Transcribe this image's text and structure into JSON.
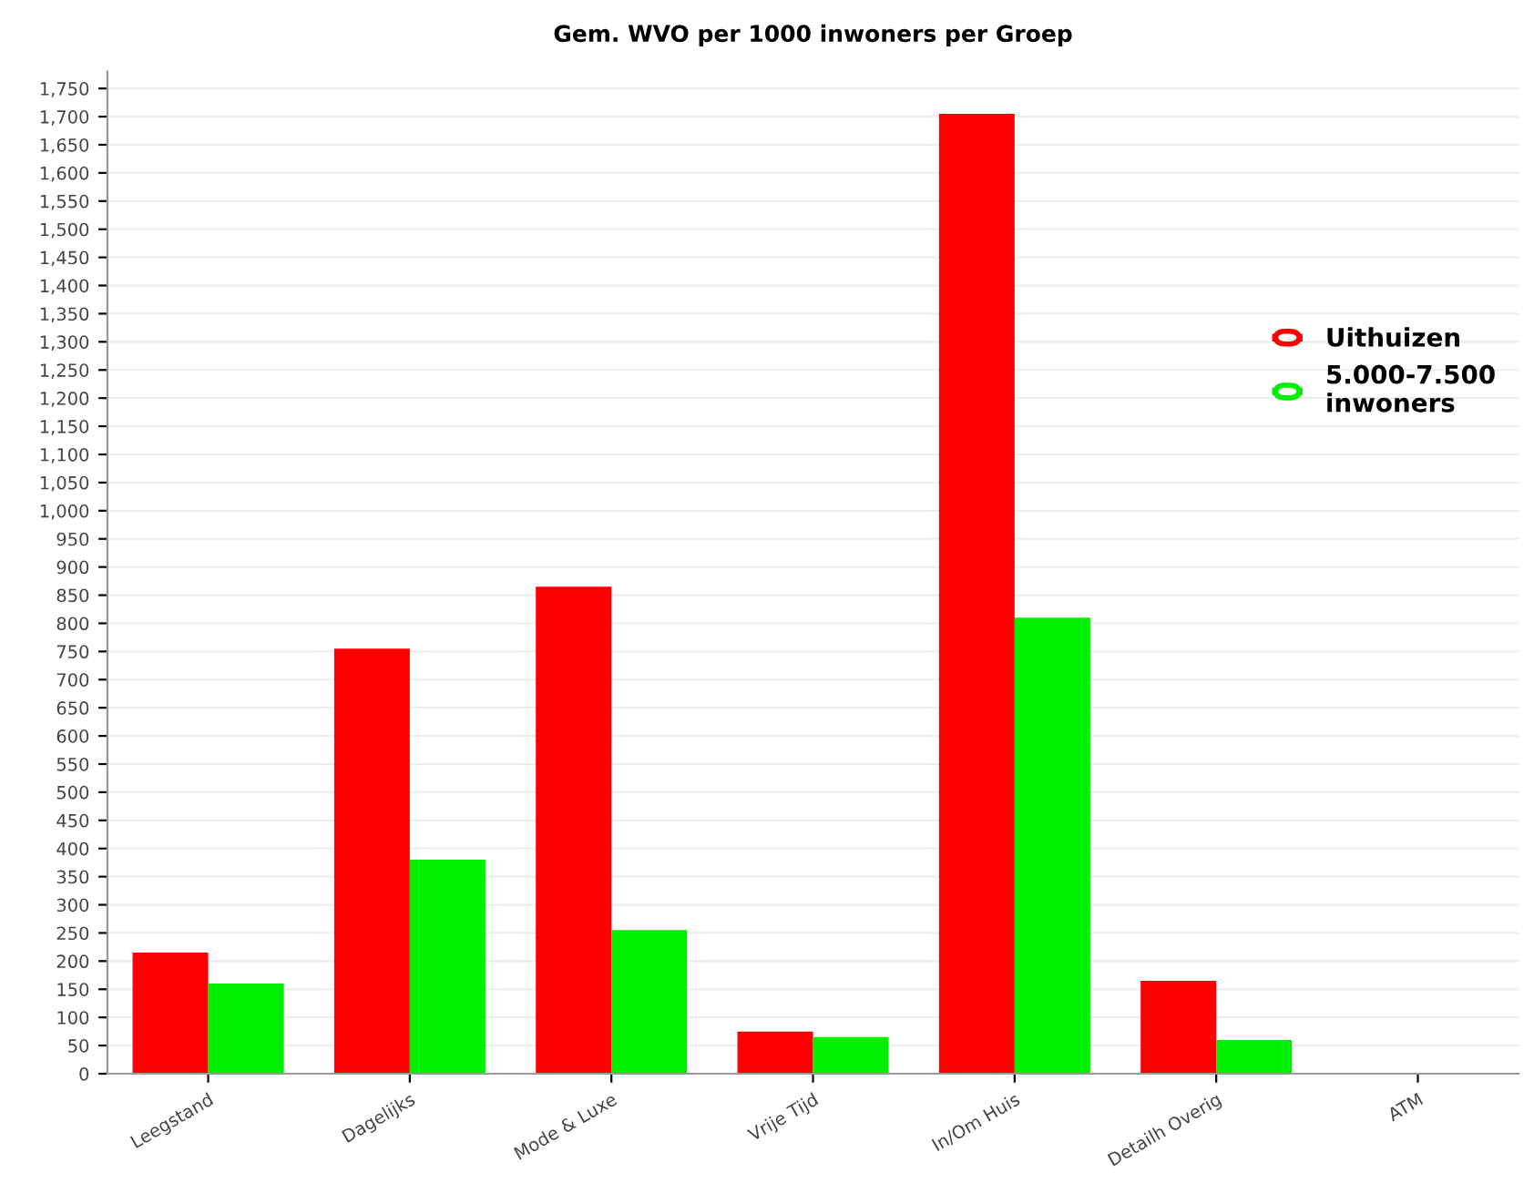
{
  "chart_data": {
    "type": "bar",
    "title": "Gem. WVO per 1000 inwoners per Groep",
    "categories": [
      "Leegstand",
      "Dagelijks",
      "Mode & Luxe",
      "Vrije Tijd",
      "In/Om Huis",
      "Detailh Overig",
      "ATM"
    ],
    "series": [
      {
        "name": "Uithuizen",
        "color": "#ff0000",
        "values": [
          215,
          755,
          865,
          75,
          1705,
          165,
          0
        ]
      },
      {
        "name": "5.000-7.500\ninwoners",
        "color": "#00ee00",
        "values": [
          160,
          380,
          255,
          65,
          810,
          60,
          0
        ]
      }
    ],
    "ylim": [
      0,
      1780
    ],
    "yticks": [
      0,
      50,
      100,
      150,
      200,
      250,
      300,
      350,
      400,
      450,
      500,
      550,
      600,
      650,
      700,
      750,
      800,
      850,
      900,
      950,
      {
        "value": 1000,
        "label": "1,000"
      },
      {
        "value": 1050,
        "label": "1,050"
      },
      {
        "value": 1100,
        "label": "1,100"
      },
      {
        "value": 1150,
        "label": "1,150"
      },
      {
        "value": 1200,
        "label": "1,200"
      },
      {
        "value": 1250,
        "label": "1,250"
      },
      {
        "value": 1300,
        "label": "1,300"
      },
      {
        "value": 1350,
        "label": "1,350"
      },
      {
        "value": 1400,
        "label": "1,400"
      },
      {
        "value": 1450,
        "label": "1,450"
      },
      {
        "value": 1500,
        "label": "1,500"
      },
      {
        "value": 1550,
        "label": "1,550"
      },
      {
        "value": 1600,
        "label": "1,600"
      },
      {
        "value": 1650,
        "label": "1,650"
      },
      {
        "value": 1700,
        "label": "1,700"
      },
      {
        "value": 1750,
        "label": "1,750"
      }
    ],
    "grid": "y",
    "legend": "right"
  }
}
